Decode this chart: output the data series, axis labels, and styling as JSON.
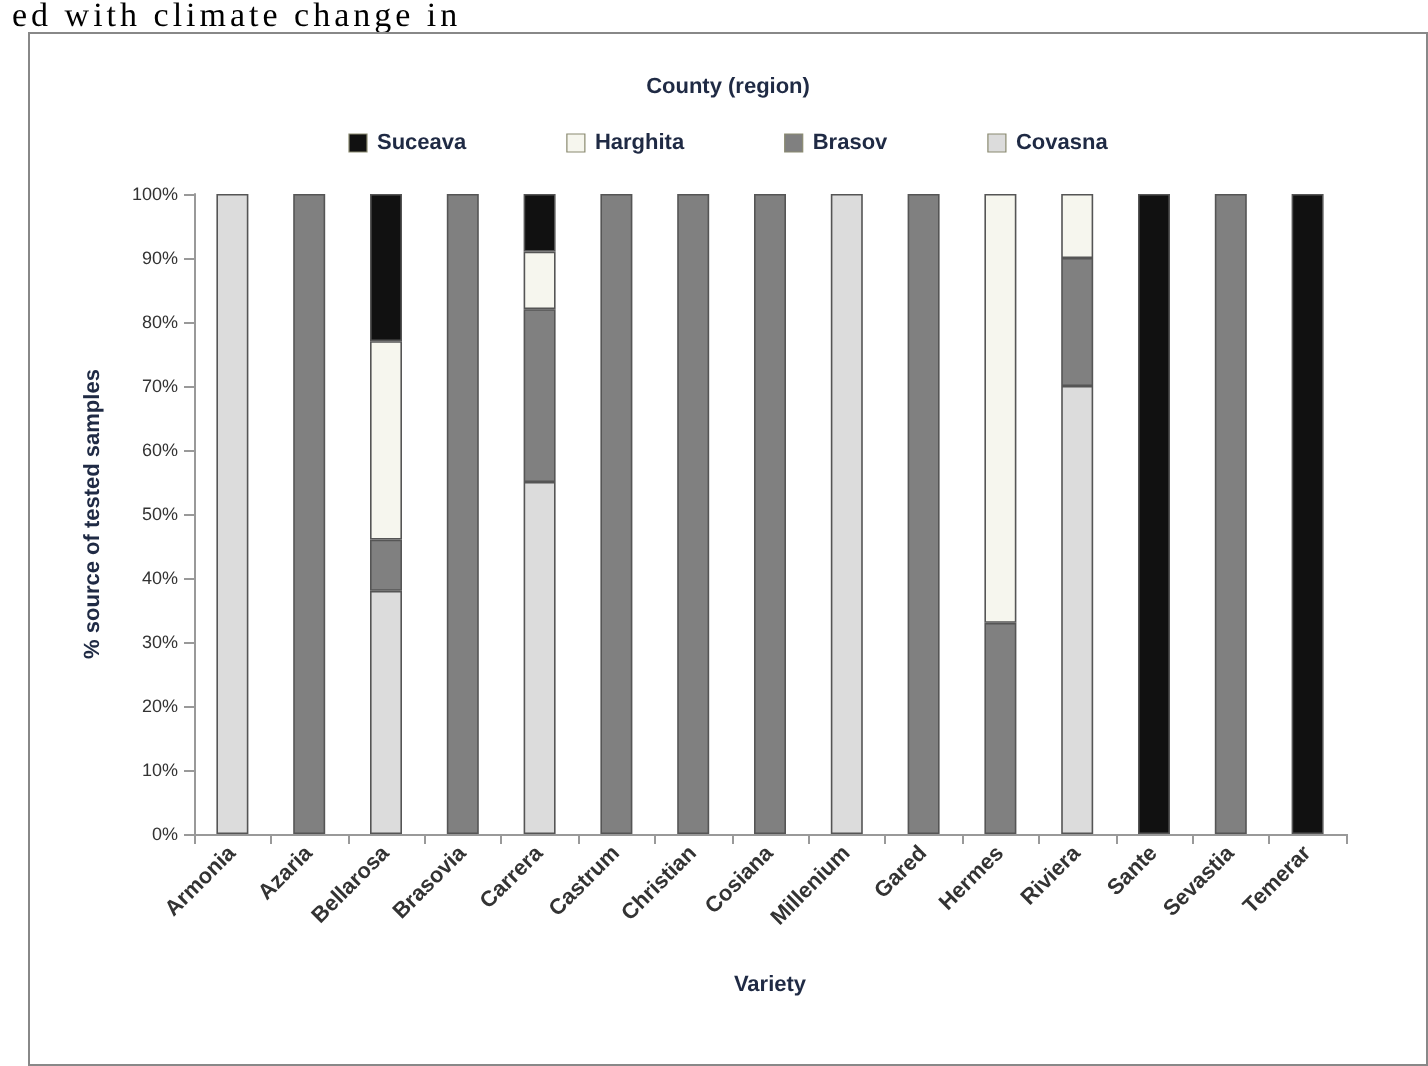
{
  "chart_data": {
    "type": "bar",
    "stacked": true,
    "legend_title": "County (region)",
    "xlabel": "Variety",
    "ylabel": "% source of tested samples",
    "annotations": [
      "ed with climate change in"
    ],
    "categories": [
      "Armonia",
      "Azaria",
      "Bellarosa",
      "Brasovia",
      "Carrera",
      "Castrum",
      "Christian",
      "Cosiana",
      "Millenium",
      "Gared",
      "Hermes",
      "Riviera",
      "Sante",
      "Sevastia",
      "Temerar"
    ],
    "series": [
      {
        "name": "Covasna",
        "color": "#dcdcdc",
        "values": [
          100,
          0,
          38,
          0,
          55,
          0,
          0,
          0,
          100,
          0,
          0,
          70,
          0,
          0,
          0
        ]
      },
      {
        "name": "Brasov",
        "color": "#808080",
        "values": [
          0,
          100,
          8,
          100,
          27,
          100,
          100,
          100,
          0,
          100,
          33,
          20,
          0,
          100,
          0
        ]
      },
      {
        "name": "Harghita",
        "color": "#f6f6ee",
        "values": [
          0,
          0,
          31,
          0,
          9,
          0,
          0,
          0,
          0,
          0,
          67,
          10,
          0,
          0,
          0
        ]
      },
      {
        "name": "Suceava",
        "color": "#111111",
        "values": [
          0,
          0,
          23,
          0,
          9,
          0,
          0,
          0,
          0,
          0,
          0,
          0,
          100,
          0,
          100
        ]
      }
    ],
    "ylim": [
      0,
      100
    ],
    "yticks": [
      {
        "value": 0,
        "label": "0%"
      },
      {
        "value": 10,
        "label": "10%"
      },
      {
        "value": 20,
        "label": "20%"
      },
      {
        "value": 30,
        "label": "30%"
      },
      {
        "value": 40,
        "label": "40%"
      },
      {
        "value": 50,
        "label": "50%"
      },
      {
        "value": 60,
        "label": "60%"
      },
      {
        "value": 70,
        "label": "70%"
      },
      {
        "value": 80,
        "label": "80%"
      },
      {
        "value": 90,
        "label": "90%"
      },
      {
        "value": 100,
        "label": "100%"
      }
    ],
    "grid": false,
    "legend": "top"
  }
}
